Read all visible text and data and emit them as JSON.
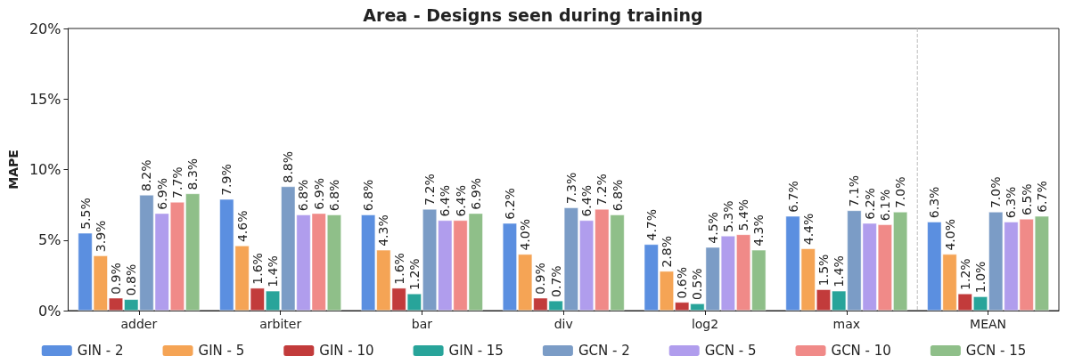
{
  "chart_data": {
    "type": "bar",
    "title": "Area - Designs seen during training",
    "ylabel": "MAPE",
    "categories": [
      "adder",
      "arbiter",
      "bar",
      "div",
      "log2",
      "max",
      "MEAN"
    ],
    "series": [
      {
        "name": "GIN - 2",
        "color": "#5b8fe0",
        "values": [
          5.5,
          7.9,
          6.8,
          6.2,
          4.7,
          6.7,
          6.3
        ],
        "value_labels": [
          "5.5%",
          "7.9%",
          "6.8%",
          "6.2%",
          "4.7%",
          "6.7%",
          "6.3%"
        ]
      },
      {
        "name": "GIN - 5",
        "color": "#f5a455",
        "values": [
          3.9,
          4.6,
          4.3,
          4.0,
          2.8,
          4.4,
          4.0
        ],
        "value_labels": [
          "3.9%",
          "4.6%",
          "4.3%",
          "4.0%",
          "2.8%",
          "4.4%",
          "4.0%"
        ]
      },
      {
        "name": "GIN - 10",
        "color": "#c23b3b",
        "values": [
          0.9,
          1.6,
          1.6,
          0.9,
          0.6,
          1.5,
          1.2
        ],
        "value_labels": [
          "0.9%",
          "1.6%",
          "1.6%",
          "0.9%",
          "0.6%",
          "1.5%",
          "1.2%"
        ]
      },
      {
        "name": "GIN - 15",
        "color": "#28a49a",
        "values": [
          0.8,
          1.4,
          1.2,
          0.7,
          0.5,
          1.4,
          1.0
        ],
        "value_labels": [
          "0.8%",
          "1.4%",
          "1.2%",
          "0.7%",
          "0.5%",
          "1.4%",
          "1.0%"
        ]
      },
      {
        "name": "GCN - 2",
        "color": "#7b9cc6",
        "values": [
          8.2,
          8.8,
          7.2,
          7.3,
          4.5,
          7.1,
          7.0
        ],
        "value_labels": [
          "8.2%",
          "8.8%",
          "7.2%",
          "7.3%",
          "4.5%",
          "7.1%",
          "7.0%"
        ]
      },
      {
        "name": "GCN - 5",
        "color": "#b09ded",
        "values": [
          6.9,
          6.8,
          6.4,
          6.4,
          5.3,
          6.2,
          6.3
        ],
        "value_labels": [
          "6.9%",
          "6.8%",
          "6.4%",
          "6.4%",
          "5.3%",
          "6.2%",
          "6.3%"
        ]
      },
      {
        "name": "GCN - 10",
        "color": "#f08a88",
        "values": [
          7.7,
          6.9,
          6.4,
          7.2,
          5.4,
          6.1,
          6.5
        ],
        "value_labels": [
          "7.7%",
          "6.9%",
          "6.4%",
          "7.2%",
          "5.4%",
          "6.1%",
          "6.5%"
        ]
      },
      {
        "name": "GCN - 15",
        "color": "#8fbf89",
        "values": [
          8.3,
          6.8,
          6.9,
          6.8,
          4.3,
          7.0,
          6.7
        ],
        "value_labels": [
          "8.3%",
          "6.8%",
          "6.9%",
          "6.8%",
          "4.3%",
          "7.0%",
          "6.7%"
        ]
      }
    ],
    "ylim": [
      0,
      20
    ],
    "yticks": [
      {
        "value": 0,
        "label": "0%"
      },
      {
        "value": 5,
        "label": "5%"
      },
      {
        "value": 10,
        "label": "10%"
      },
      {
        "value": 15,
        "label": "15%"
      },
      {
        "value": 20,
        "label": "20%"
      }
    ],
    "grid": false,
    "legend": "bottom"
  }
}
